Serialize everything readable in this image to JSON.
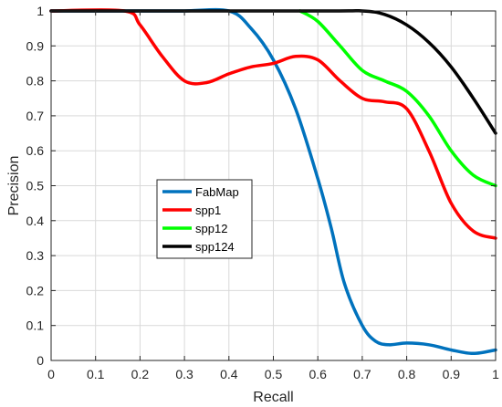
{
  "chart_data": {
    "type": "line",
    "title": "",
    "xlabel": "Recall",
    "ylabel": "Precision",
    "xlim": [
      0,
      1
    ],
    "ylim": [
      0,
      1
    ],
    "xticks": [
      "0",
      "0.1",
      "0.2",
      "0.3",
      "0.4",
      "0.5",
      "0.6",
      "0.7",
      "0.8",
      "0.9",
      "1"
    ],
    "yticks": [
      "0",
      "0.1",
      "0.2",
      "0.3",
      "0.4",
      "0.5",
      "0.6",
      "0.7",
      "0.8",
      "0.9",
      "1"
    ],
    "grid": true,
    "legend_position": "center-left",
    "series": [
      {
        "name": "FabMap",
        "color": "#0072BD",
        "x": [
          0,
          0.1,
          0.2,
          0.3,
          0.4,
          0.45,
          0.5,
          0.55,
          0.6,
          0.63,
          0.66,
          0.7,
          0.73,
          0.76,
          0.8,
          0.85,
          0.9,
          0.95,
          1.0
        ],
        "y": [
          1.0,
          1.0,
          1.0,
          1.0,
          1.0,
          0.95,
          0.86,
          0.72,
          0.52,
          0.38,
          0.22,
          0.1,
          0.055,
          0.045,
          0.05,
          0.045,
          0.03,
          0.02,
          0.03
        ]
      },
      {
        "name": "spp1",
        "color": "#FF0000",
        "x": [
          0,
          0.165,
          0.2,
          0.25,
          0.3,
          0.35,
          0.4,
          0.45,
          0.5,
          0.55,
          0.6,
          0.65,
          0.7,
          0.75,
          0.8,
          0.85,
          0.9,
          0.95,
          1.0
        ],
        "y": [
          1.0,
          1.0,
          0.96,
          0.87,
          0.8,
          0.795,
          0.82,
          0.84,
          0.85,
          0.87,
          0.86,
          0.8,
          0.75,
          0.74,
          0.72,
          0.6,
          0.45,
          0.37,
          0.35
        ]
      },
      {
        "name": "spp12",
        "color": "#00FF00",
        "x": [
          0.56,
          0.6,
          0.65,
          0.7,
          0.75,
          0.8,
          0.85,
          0.9,
          0.95,
          1.0
        ],
        "y": [
          1.0,
          0.97,
          0.9,
          0.83,
          0.8,
          0.77,
          0.7,
          0.6,
          0.53,
          0.5
        ]
      },
      {
        "name": "spp124",
        "color": "#000000",
        "x": [
          0,
          0.6,
          0.7,
          0.75,
          0.8,
          0.85,
          0.9,
          0.95,
          1.0
        ],
        "y": [
          1.0,
          1.0,
          1.0,
          0.99,
          0.96,
          0.91,
          0.84,
          0.75,
          0.65
        ]
      }
    ]
  }
}
